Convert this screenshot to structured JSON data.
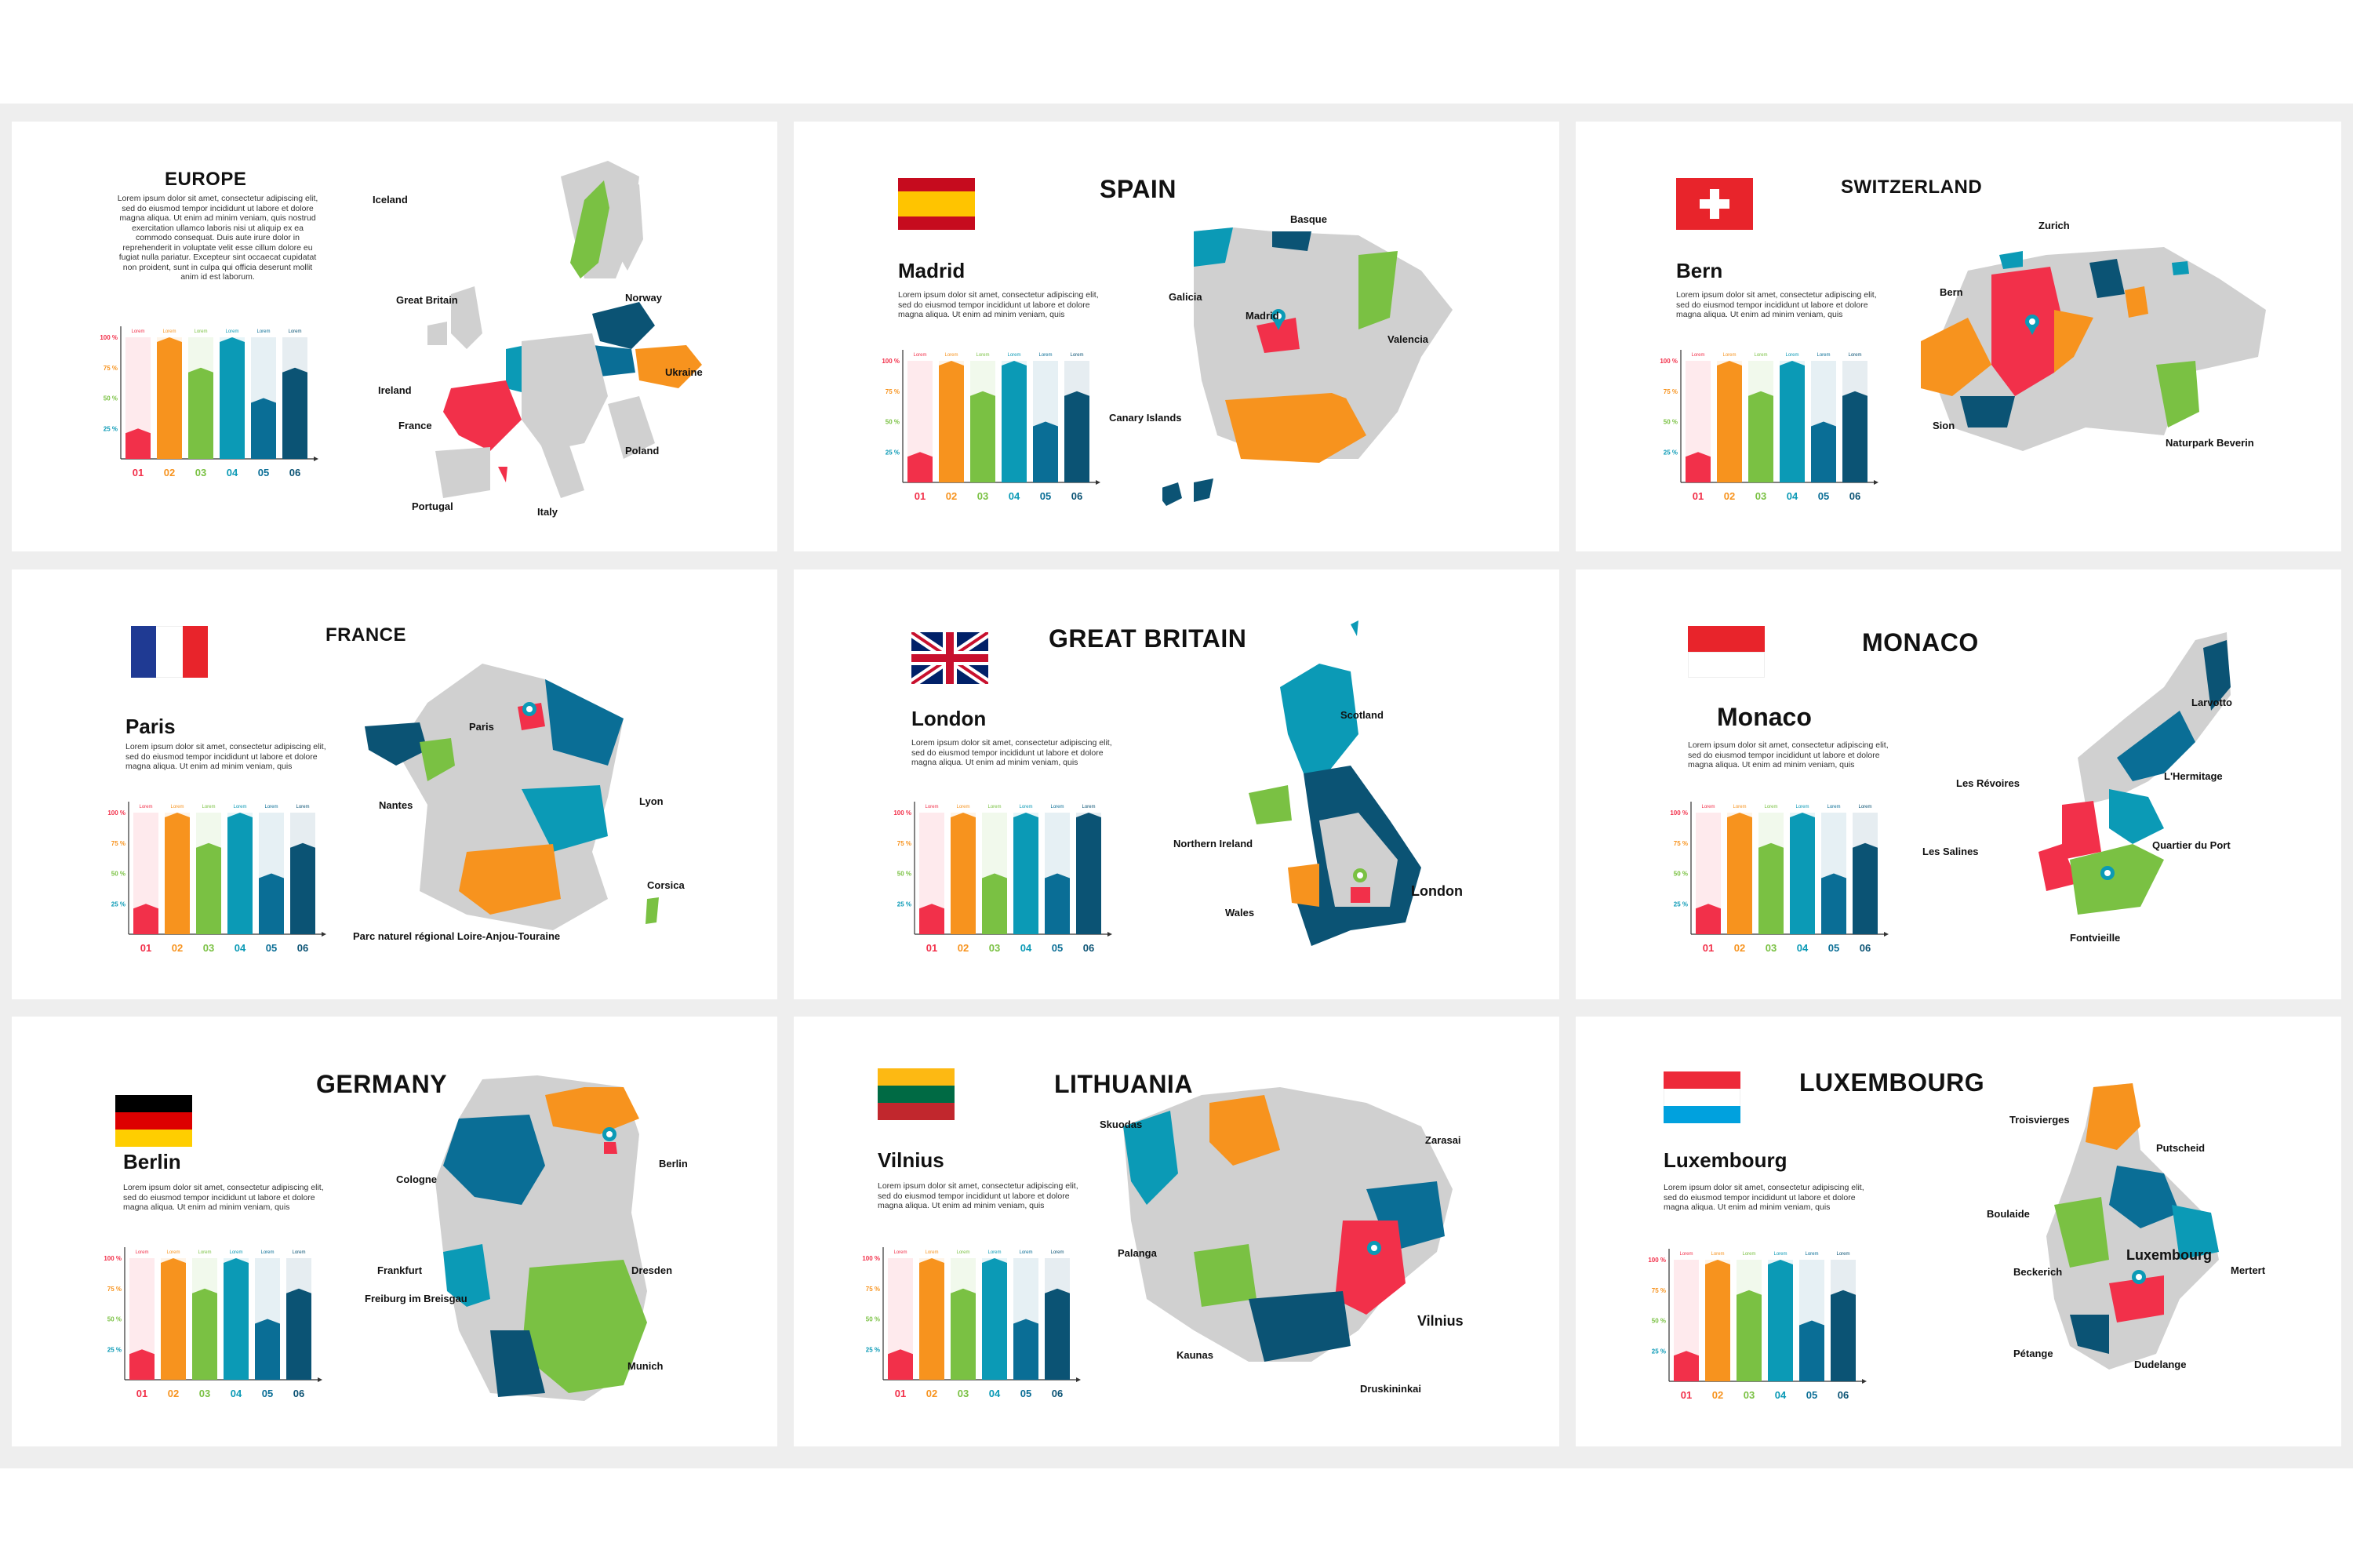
{
  "body_text": "Lorem ipsum dolor sit amet, consectetur adipiscing elit, sed do eiusmod tempor incididunt ut labore et dolore magna aliqua. Ut enim ad minim veniam, quis",
  "europe_body_text": "Lorem ipsum dolor sit amet, consectetur adipiscing elit, sed do eiusmod tempor incididunt ut labore et dolore magna aliqua. Ut enim ad minim veniam, quis nostrud exercitation ullamco laboris nisi ut aliquip ex ea commodo consequat. Duis aute irure dolor in reprehenderit in voluptate velit esse cillum dolore eu fugiat nulla pariatur. Excepteur sint occaecat cupidatat non proident, sunt in culpa qui officia deserunt mollit anim id est laborum.",
  "palette": [
    "#f2304a",
    "#f7931e",
    "#7ac143",
    "#0b9ab6",
    "#0a6e96",
    "#0b5374"
  ],
  "chart_data": {
    "type": "bar",
    "categories": [
      "01",
      "02",
      "03",
      "04",
      "05",
      "06"
    ],
    "bar_labels": [
      "Lorem",
      "Lorem",
      "Lorem",
      "Lorem",
      "Lorem",
      "Lorem"
    ],
    "y_ticks": [
      "100 %",
      "75 %",
      "50 %",
      "25 %"
    ],
    "ylim": [
      0,
      100
    ]
  },
  "slides": [
    {
      "id": "europe",
      "title": "EUROPE",
      "capital": "",
      "flag": [],
      "values": [
        25,
        100,
        75,
        100,
        50,
        75
      ],
      "places": [
        "Iceland",
        "Great Britain",
        "Norway",
        "Ukraine",
        "Ireland",
        "France",
        "Poland",
        "Portugal",
        "Italy"
      ]
    },
    {
      "id": "spain",
      "title": "SPAIN",
      "capital": "Madrid",
      "flag": [
        "#c60b1e",
        "#ffc400",
        "#ffc400",
        "#c60b1e"
      ],
      "values": [
        25,
        100,
        75,
        100,
        50,
        75
      ],
      "places": [
        "Basque",
        "Galicia",
        "Madrid",
        "Valencia",
        "Canary Islands"
      ]
    },
    {
      "id": "switzerland",
      "title": "SWITZERLAND",
      "capital": "Bern",
      "flag": [
        "#e8242b"
      ],
      "values": [
        25,
        100,
        75,
        100,
        50,
        75
      ],
      "places": [
        "Zurich",
        "Bern",
        "Sion",
        "Naturpark Beverin"
      ]
    },
    {
      "id": "france",
      "title": "FRANCE",
      "capital": "Paris",
      "flag": [
        "#1f3a93",
        "#ffffff",
        "#e8242b"
      ],
      "values": [
        25,
        100,
        75,
        100,
        50,
        75
      ],
      "places": [
        "Paris",
        "Nantes",
        "Lyon",
        "Corsica",
        "Parc naturel régional Loire-Anjou-Touraine"
      ]
    },
    {
      "id": "great-britain",
      "title": "GREAT BRITAIN",
      "capital": "London",
      "flag": [
        "#012169"
      ],
      "values": [
        25,
        100,
        50,
        100,
        50,
        100
      ],
      "places": [
        "Scotland",
        "Northern Ireland",
        "Wales",
        "London"
      ]
    },
    {
      "id": "monaco",
      "title": "MONACO",
      "capital": "Monaco",
      "flag": [
        "#e8242b",
        "#ffffff"
      ],
      "values": [
        25,
        100,
        75,
        100,
        50,
        75
      ],
      "places": [
        "Larvotto",
        "L'Hermitage",
        "Les Révoires",
        "Quartier du Port",
        "Les Salines",
        "Fontvieille"
      ]
    },
    {
      "id": "germany",
      "title": "GERMANY",
      "capital": "Berlin",
      "flag": [
        "#000000",
        "#dd0000",
        "#ffce00"
      ],
      "values": [
        25,
        100,
        75,
        100,
        50,
        75
      ],
      "places": [
        "Cologne",
        "Berlin",
        "Frankfurt",
        "Dresden",
        "Freiburg im Breisgau",
        "Munich"
      ]
    },
    {
      "id": "lithuania",
      "title": "LITHUANIA",
      "capital": "Vilnius",
      "flag": [
        "#fdb913",
        "#006a44",
        "#c1272d"
      ],
      "values": [
        25,
        100,
        75,
        100,
        50,
        75
      ],
      "places": [
        "Skuodas",
        "Zarasai",
        "Palanga",
        "Vilnius",
        "Kaunas",
        "Druskininkai"
      ]
    },
    {
      "id": "luxembourg",
      "title": "LUXEMBOURG",
      "capital": "Luxembourg",
      "flag": [
        "#ed2939",
        "#ffffff",
        "#00a1de"
      ],
      "values": [
        25,
        100,
        75,
        100,
        50,
        75
      ],
      "places": [
        "Troisvierges",
        "Putscheid",
        "Boulaide",
        "Beckerich",
        "Luxembourg",
        "Mertert",
        "Pétange",
        "Dudelange"
      ]
    }
  ]
}
